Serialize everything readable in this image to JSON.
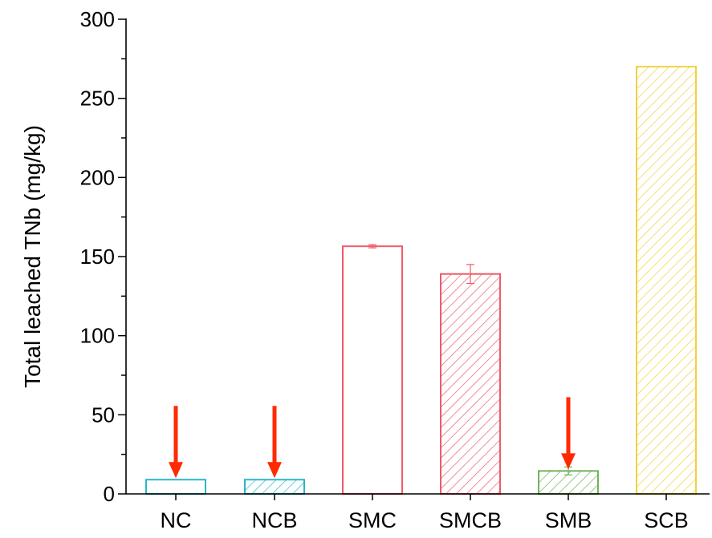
{
  "chart_data": {
    "type": "bar",
    "title": "",
    "xlabel": "",
    "ylabel": "Total leached TNb (mg/kg)",
    "ylim": [
      0,
      300
    ],
    "yticks": [
      "0",
      "50",
      "100",
      "150",
      "200",
      "250",
      "300"
    ],
    "grid": false,
    "categories": [
      "NC",
      "NCB",
      "SMC",
      "SMCB",
      "SMB",
      "SCB"
    ],
    "values": [
      9,
      9,
      156.5,
      139,
      14.5,
      270
    ],
    "errors": [
      0,
      0,
      1,
      6,
      2.5,
      0
    ],
    "colors": [
      "#29B6C8",
      "#29B6C8",
      "#F05A6A",
      "#F05A6A",
      "#6FB35A",
      "#F2D040"
    ],
    "hatched": [
      false,
      true,
      false,
      true,
      true,
      true
    ],
    "arrows": {
      "color": "#FF2A00",
      "marked_categories": [
        "NC",
        "NCB",
        "SMB"
      ]
    }
  }
}
